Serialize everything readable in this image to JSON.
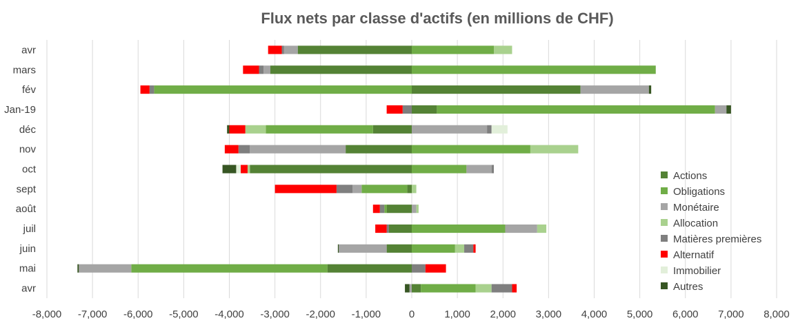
{
  "chart_data": {
    "type": "bar",
    "orientation": "horizontal",
    "stacked": "diverging",
    "title": "Flux nets par classe d'actifs (en millions de CHF)",
    "xlabel": "",
    "ylabel": "",
    "xlim": [
      -8000,
      8000
    ],
    "xticks": [
      -8000,
      -7000,
      -6000,
      -5000,
      -4000,
      -3000,
      -2000,
      -1000,
      0,
      1000,
      2000,
      3000,
      4000,
      5000,
      6000,
      7000,
      8000
    ],
    "xtick_labels": [
      "-8,000",
      "-7,000",
      "-6,000",
      "-5,000",
      "-4,000",
      "-3,000",
      "-2,000",
      "-1,000",
      "0",
      "1,000",
      "2,000",
      "3,000",
      "4,000",
      "5,000",
      "6,000",
      "7,000",
      "8,000"
    ],
    "grid": true,
    "legend_position": "bottom-right",
    "categories": [
      "avr",
      "mars",
      "fév",
      "Jan-19",
      "déc",
      "nov",
      "oct",
      "sept",
      "août",
      "juil",
      "juin",
      "mai",
      "avr"
    ],
    "series": [
      {
        "name": "Actions",
        "color": "#548235",
        "values": [
          -2500,
          -3100,
          3700,
          550,
          -850,
          -1450,
          -3550,
          -100,
          -550,
          -500,
          -550,
          -1850,
          200
        ]
      },
      {
        "name": "Obligations",
        "color": "#70AD47",
        "values": [
          1800,
          5350,
          -5650,
          6100,
          -2350,
          2600,
          1200,
          -1000,
          -50,
          2050,
          950,
          -4300,
          1200
        ]
      },
      {
        "name": "Monétaire",
        "color": "#A5A5A5",
        "values": [
          -300,
          -150,
          1500,
          250,
          1650,
          -2100,
          550,
          -200,
          100,
          700,
          -1050,
          -1150,
          -50
        ]
      },
      {
        "name": "Allocation",
        "color": "#A9D18E",
        "values": [
          400,
          0,
          0,
          0,
          -450,
          1050,
          -50,
          100,
          50,
          200,
          200,
          0,
          350
        ]
      },
      {
        "name": "Matières premières",
        "color": "#7F7F7F",
        "values": [
          -50,
          -100,
          -100,
          -200,
          100,
          -250,
          50,
          -350,
          -100,
          -50,
          200,
          300,
          450
        ]
      },
      {
        "name": "Alternatif",
        "color": "#FF0000",
        "values": [
          -300,
          -350,
          -200,
          -350,
          -350,
          -300,
          -150,
          -1350,
          -150,
          -250,
          50,
          450,
          100
        ]
      },
      {
        "name": "Immobilier",
        "color": "#E2EFDA",
        "values": [
          0,
          0,
          0,
          0,
          350,
          0,
          -100,
          0,
          0,
          0,
          0,
          0,
          0
        ]
      },
      {
        "name": "Autres",
        "color": "#375623",
        "values": [
          0,
          0,
          50,
          100,
          -50,
          0,
          -300,
          0,
          0,
          0,
          -20,
          -30,
          -100
        ]
      }
    ]
  }
}
